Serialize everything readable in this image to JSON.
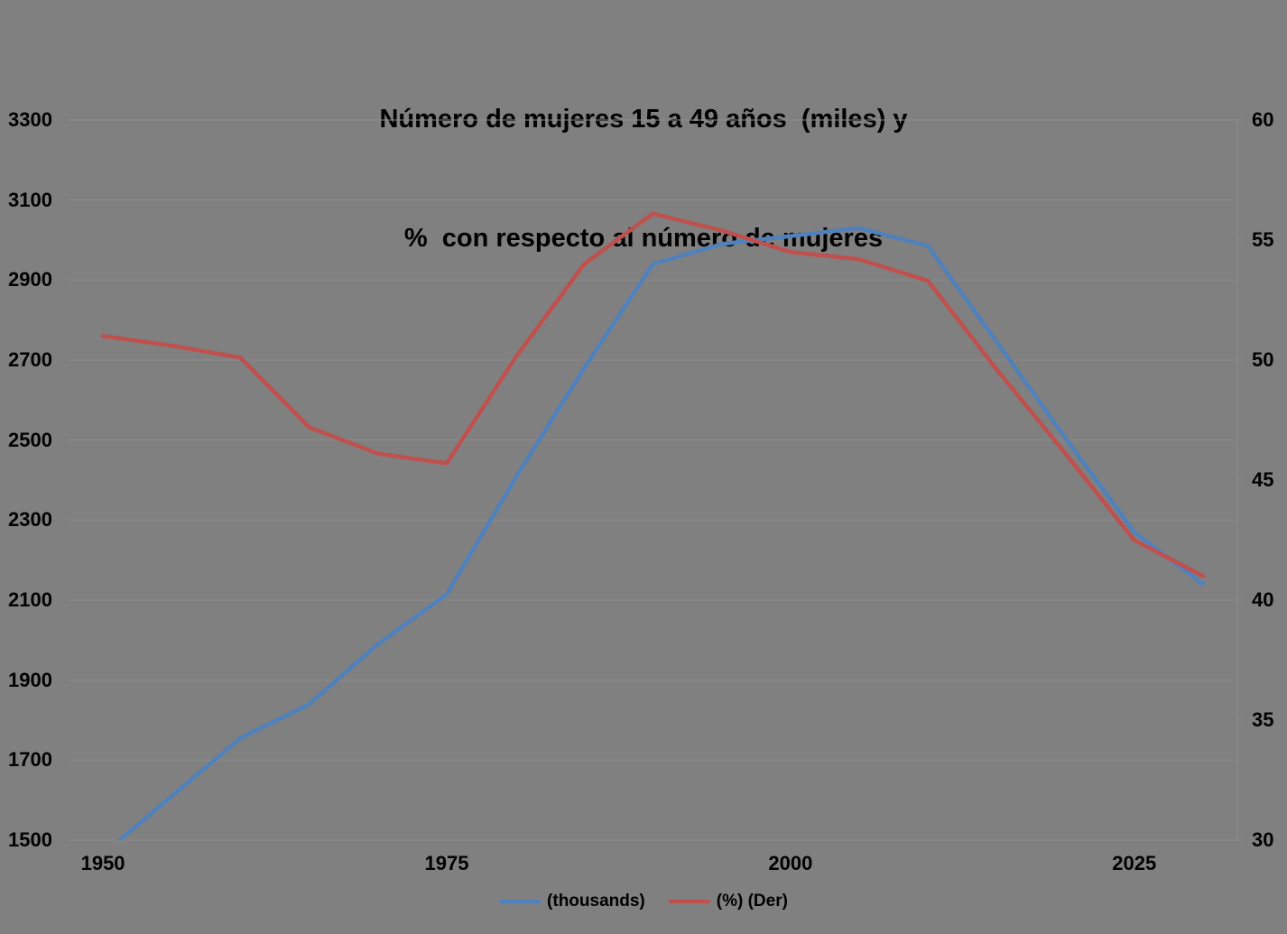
{
  "title": {
    "line1": "Número de mujeres 15 a 49 años  (miles) y",
    "line2": "%  con respecto al número de mujeres"
  },
  "legend": {
    "items": [
      {
        "label": "(thousands)",
        "color": "#4F81BD"
      },
      {
        "label": "(%) (Der)",
        "color": "#C0504D"
      }
    ]
  },
  "colors": {
    "background": "#808080",
    "gridline": "#8D8D8D",
    "axis_line": "#8D8D8D",
    "text": "#000000",
    "series_thousands": "#4F81BD",
    "series_percent": "#C0504D"
  },
  "chart_data": {
    "type": "line",
    "title": "Número de mujeres 15 a 49 años (miles) y % con respecto al número de mujeres",
    "x": [
      1950,
      1955,
      1960,
      1965,
      1970,
      1975,
      1980,
      1985,
      1990,
      1995,
      2000,
      2005,
      2010,
      2015,
      2020,
      2025,
      2030
    ],
    "series": [
      {
        "name": "(thousands)",
        "axis": "left",
        "color": "#4F81BD",
        "values": [
          1465,
          1610,
          1755,
          1840,
          1990,
          2115,
          2405,
          2680,
          2940,
          2990,
          3010,
          3030,
          2985,
          2745,
          2505,
          2270,
          2140
        ]
      },
      {
        "name": "(%) (Der)",
        "axis": "right",
        "color": "#C0504D",
        "values": [
          51.0,
          50.6,
          50.1,
          47.2,
          46.1,
          45.7,
          50.1,
          54.0,
          56.1,
          55.4,
          54.5,
          54.2,
          53.3,
          49.6,
          46.1,
          42.5,
          41.0
        ]
      }
    ],
    "left_axis": {
      "min": 1500,
      "max": 3300,
      "tick_step": 200,
      "ticks": [
        3300,
        3100,
        2900,
        2700,
        2500,
        2300,
        2100,
        1900,
        1700,
        1500
      ]
    },
    "right_axis": {
      "min": 30,
      "max": 60,
      "tick_step": 5,
      "ticks": [
        60,
        55,
        50,
        45,
        40,
        35,
        30
      ]
    },
    "x_axis": {
      "tick_labels": [
        "1950",
        "1975",
        "2000",
        "2025"
      ],
      "tick_years": [
        1950,
        1975,
        2000,
        2025
      ]
    },
    "grid": true,
    "legend_position": "bottom"
  }
}
